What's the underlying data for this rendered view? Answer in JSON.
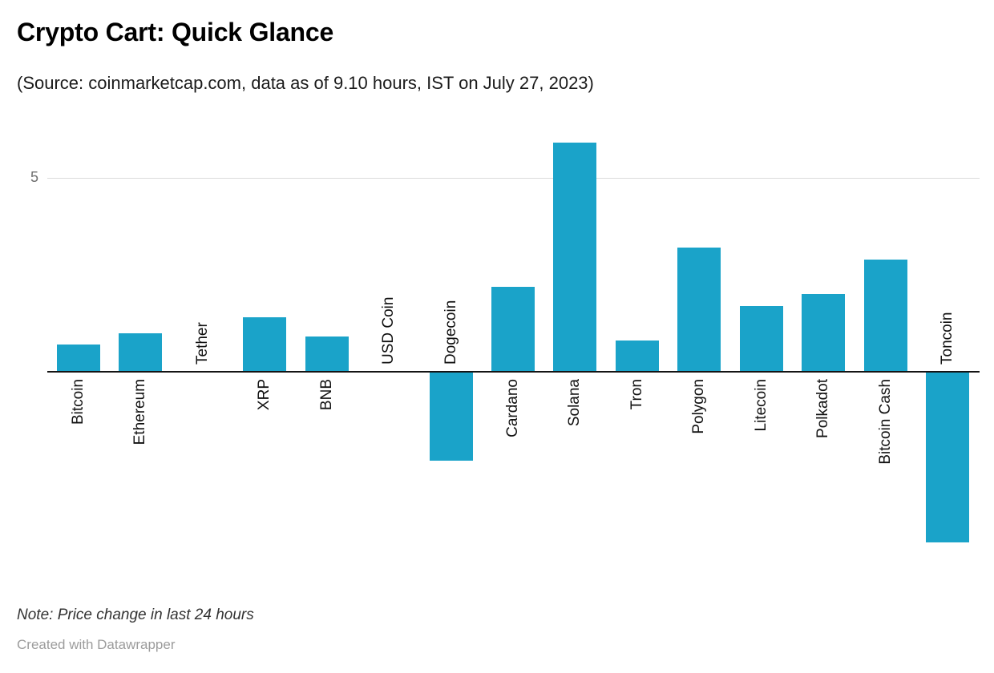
{
  "header": {
    "title": "Crypto Cart: Quick Glance",
    "subtitle": "(Source: coinmarketcap.com, data as of 9.10 hours, IST on July 27, 2023)"
  },
  "chart_data": {
    "type": "bar",
    "title": "Crypto Cart: Quick Glance",
    "subtitle": "(Source: coinmarketcap.com, data as of 9.10 hours, IST on July 27, 2023)",
    "categories": [
      "Bitcoin",
      "Ethereum",
      "Tether",
      "XRP",
      "BNB",
      "USD Coin",
      "Dogecoin",
      "Cardano",
      "Solana",
      "Tron",
      "Polygon",
      "Litecoin",
      "Polkadot",
      "Bitcoin Cash",
      "Toncoin"
    ],
    "values": [
      0.7,
      1.0,
      0,
      1.4,
      0.9,
      0,
      -2.3,
      2.2,
      5.9,
      0.8,
      3.2,
      1.7,
      2.0,
      2.9,
      -4.4
    ],
    "xlabel": "",
    "ylabel": "",
    "y_ticks": [
      5
    ],
    "ylim": [
      -4.7,
      6.3
    ],
    "grid": "single horizontal gridline at y=5",
    "legend": false,
    "orientation": "vertical-bars-with-rotated-labels",
    "bar_color": "#1aa3c9",
    "axis_color": "#141414",
    "gridline_color": "#dcdcdc"
  },
  "footer": {
    "note": "Note: Price change in last 24 hours",
    "credit": "Created with Datawrapper"
  }
}
